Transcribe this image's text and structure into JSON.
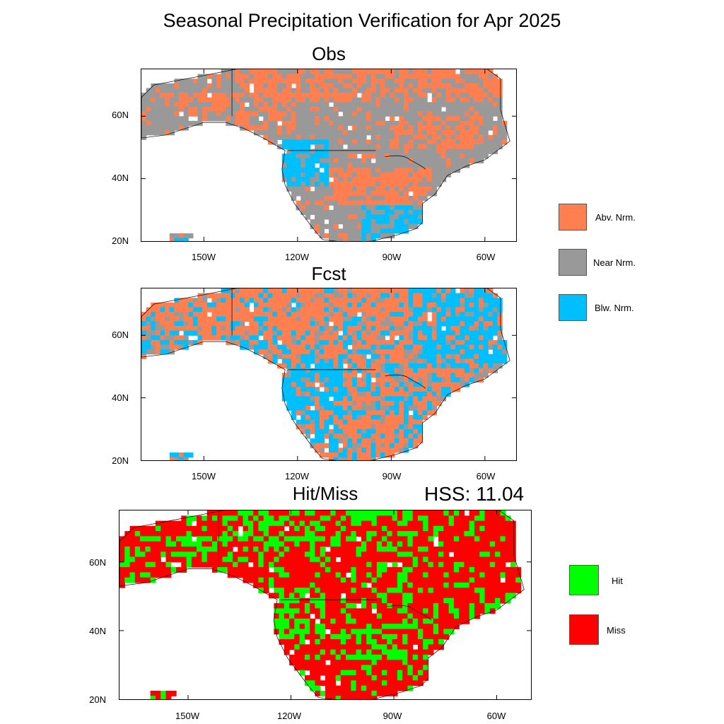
{
  "title": "Seasonal Precipitation Verification for Apr 2025",
  "panels": {
    "obs": {
      "title": "Obs"
    },
    "fcst": {
      "title": "Fcst"
    },
    "hitmiss": {
      "title": "Hit/Miss",
      "hss": "HSS: 11.04"
    }
  },
  "axes": {
    "lat_labels": [
      "60N",
      "40N",
      "20N"
    ],
    "lon_labels": [
      "150W",
      "120W",
      "90W",
      "60W"
    ]
  },
  "legend_categories": [
    {
      "label": "Abv. Nrm.",
      "color": "#FF7F50"
    },
    {
      "label": "Near Nrm.",
      "color": "#999999"
    },
    {
      "label": "Blw. Nrm.",
      "color": "#00BFFF"
    }
  ],
  "legend_hitmiss": [
    {
      "label": "Hit",
      "color": "#00FF00"
    },
    {
      "label": "Miss",
      "color": "#FF0000"
    }
  ],
  "colors": {
    "above": "#FF7F50",
    "near": "#999999",
    "below": "#00BFFF",
    "hit": "#00FF00",
    "miss": "#FF0000",
    "coast": "#000000"
  }
}
